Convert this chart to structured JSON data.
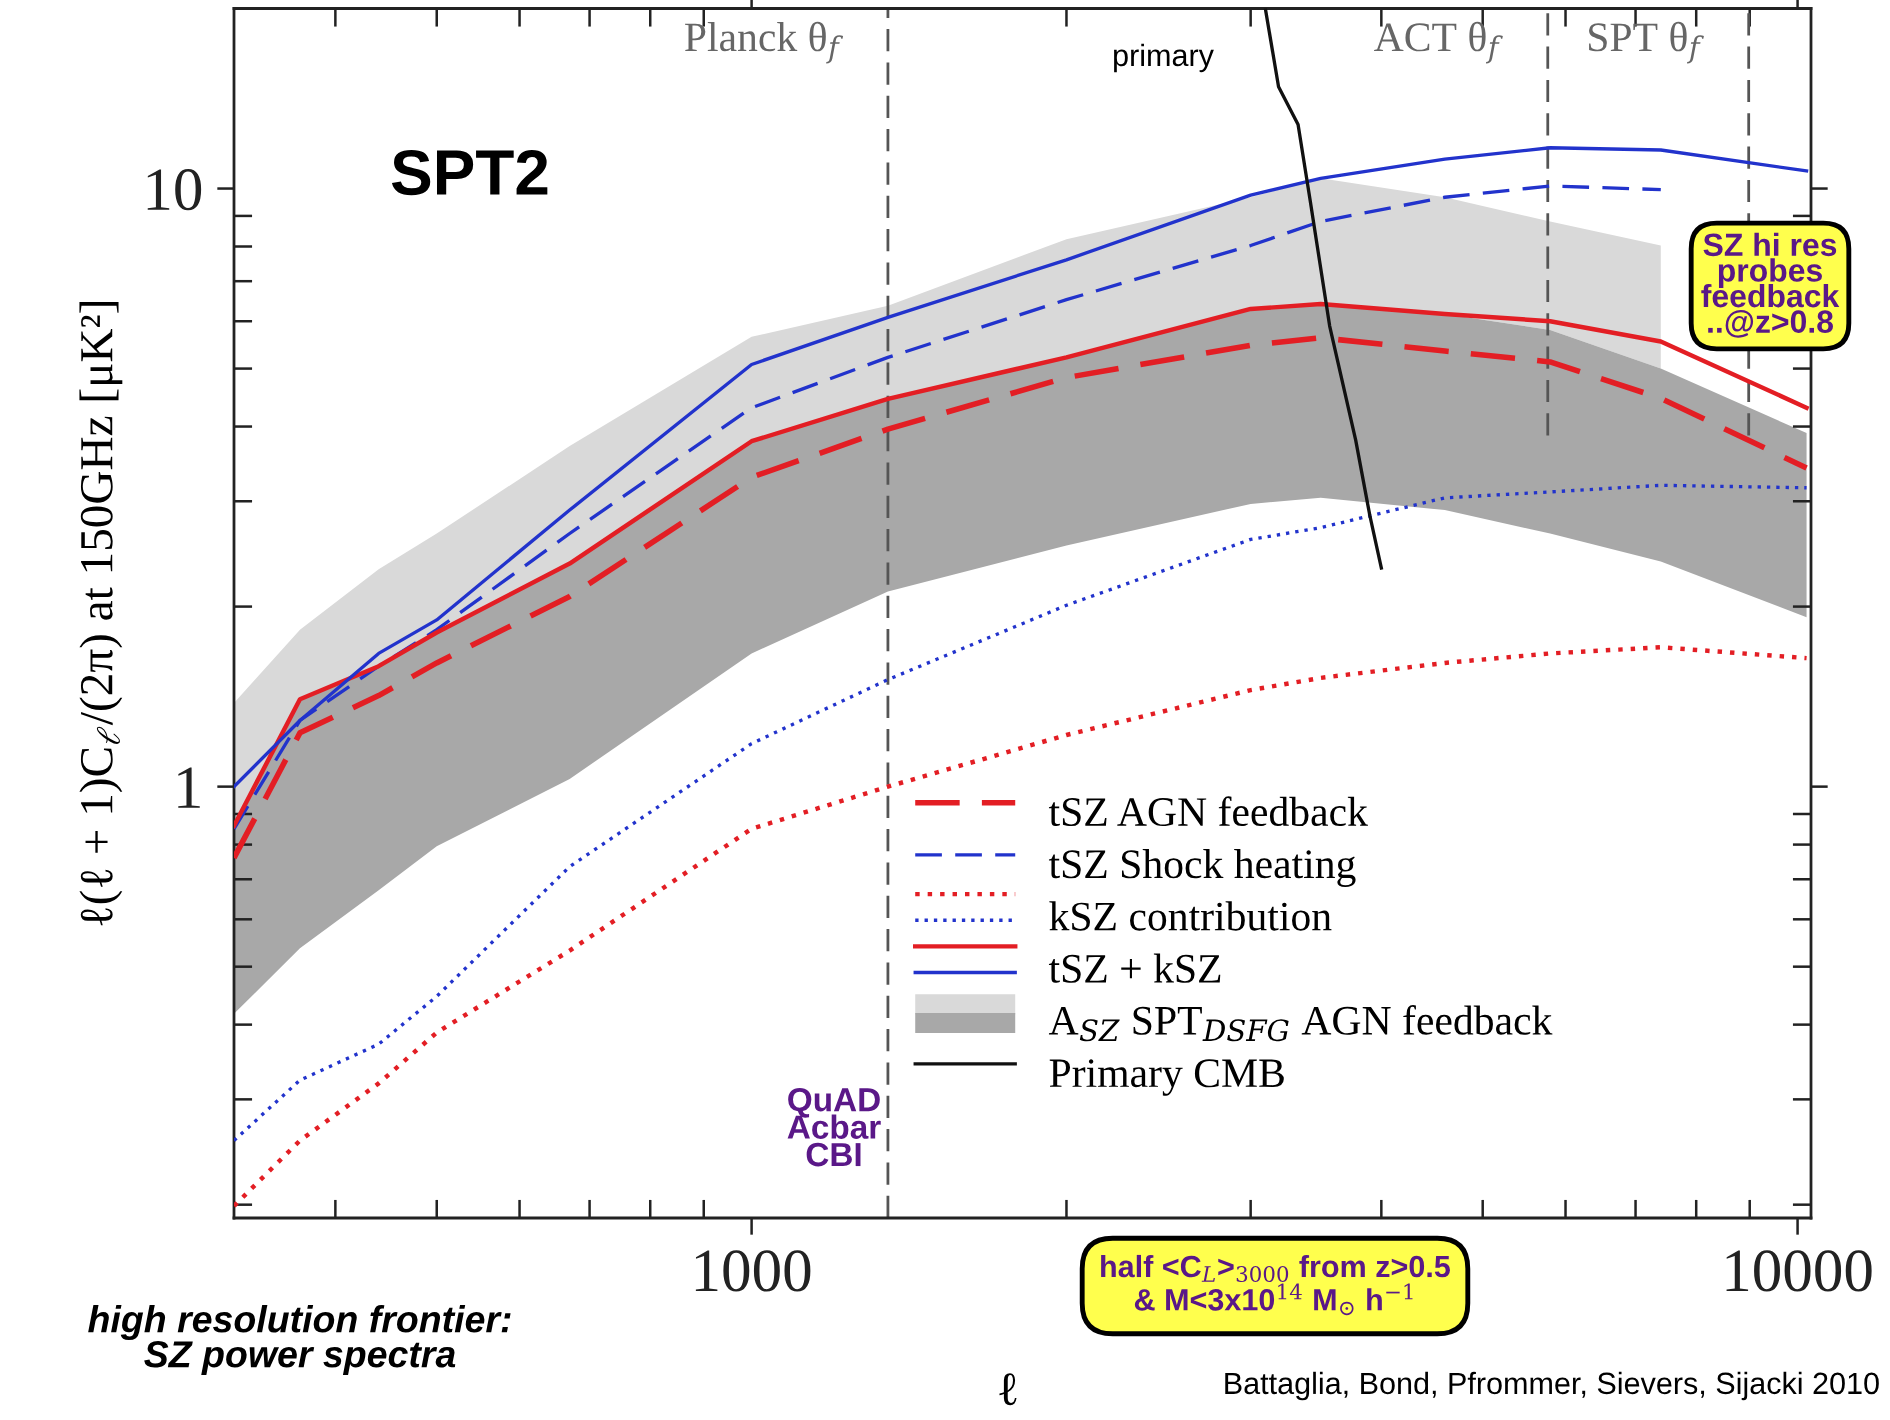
{
  "chart_data": {
    "type": "line",
    "xlabel": "ℓ",
    "ylabel": "ℓ(ℓ + 1)C$_{ℓ}$/(2π) at 150GHz [μK²]",
    "log": "xy",
    "xlim": [
      320,
      10300
    ],
    "ylim": [
      0.19,
      20
    ],
    "xticks": [
      1000,
      10000
    ],
    "yticks": [
      1,
      10
    ],
    "grid": false,
    "legend": "bottom right",
    "marker": "none",
    "x": [
      320,
      370,
      440,
      500,
      670,
      1000,
      1350,
      2000,
      3000,
      3500,
      4600,
      5800,
      7400,
      10200
    ],
    "series": [
      {
        "name": "tSZ AGN feedback",
        "line_style": "dashed",
        "color": "#e31e24",
        "values": [
          0.76,
          1.23,
          1.42,
          1.61,
          2.08,
          3.29,
          3.96,
          4.83,
          5.47,
          5.63,
          5.35,
          5.13,
          4.46,
          3.41
        ]
      },
      {
        "name": "tSZ Shock heating",
        "line_style": "dashed",
        "color": "#2233cc",
        "values": [
          0.85,
          1.29,
          1.59,
          1.83,
          2.65,
          4.3,
          5.22,
          6.52,
          8.03,
          8.81,
          9.67,
          10.1,
          9.96,
          null
        ]
      },
      {
        "name": "kSZ contribution",
        "line_style": "dotted",
        "color": "#e31e24",
        "values": [
          0.199,
          0.256,
          0.319,
          0.388,
          0.532,
          0.85,
          1.0,
          1.22,
          1.45,
          1.52,
          1.61,
          1.67,
          1.71,
          1.64
        ]
      },
      {
        "line_style": "dotted",
        "color": "#2233cc",
        "values": [
          0.256,
          0.323,
          0.371,
          0.446,
          0.735,
          1.18,
          1.51,
          2.01,
          2.59,
          2.71,
          3.04,
          3.11,
          3.19,
          3.16
        ]
      },
      {
        "name": "tSZ + kSZ",
        "line_style": "solid",
        "color": "#e31e24",
        "values": [
          0.86,
          1.4,
          1.59,
          1.81,
          2.36,
          3.78,
          4.45,
          5.22,
          6.29,
          6.41,
          6.17,
          6.0,
          5.55,
          4.3
        ]
      },
      {
        "line_style": "solid",
        "color": "#2233cc",
        "values": [
          1.0,
          1.29,
          1.67,
          1.9,
          2.9,
          5.08,
          6.09,
          7.6,
          9.75,
          10.4,
          11.2,
          11.7,
          11.6,
          10.7
        ]
      },
      {
        "name": "A$_{SZ}$ SPT$_{DSFG}$ AGN feedback",
        "color": "#d9d9d9",
        "values": [
          null,
          null,
          null,
          null,
          null,
          null,
          null,
          null,
          null,
          null,
          null,
          null,
          null,
          null
        ],
        "lower": [
          0.86,
          1.4,
          1.59,
          1.81,
          2.36,
          3.78,
          4.45,
          5.22,
          6.29,
          6.41,
          6.17,
          5.8,
          5.0,
          null
        ],
        "upper": [
          1.38,
          1.83,
          2.31,
          2.65,
          3.71,
          5.65,
          6.37,
          8.23,
          9.67,
          10.4,
          9.67,
          8.81,
          8.03,
          null
        ]
      },
      {
        "color": "#a8a8a8",
        "values": [
          null,
          null,
          null,
          null,
          null,
          null,
          null,
          null,
          null,
          null,
          null,
          null,
          null,
          null
        ],
        "lower": [
          0.417,
          0.537,
          0.671,
          0.795,
          1.03,
          1.67,
          2.12,
          2.53,
          2.97,
          3.04,
          2.9,
          2.65,
          2.38,
          1.92
        ],
        "upper": [
          0.86,
          1.4,
          1.59,
          1.81,
          2.36,
          3.78,
          4.45,
          5.22,
          6.29,
          6.41,
          6.17,
          5.8,
          5.0,
          3.9
        ]
      },
      {
        "name": "Primary CMB",
        "line_style": "solid",
        "color": "#111111",
        "x": [
          3100,
          3190,
          3330,
          3420,
          3570,
          3780,
          3900,
          4000
        ],
        "values": [
          19.9,
          14.8,
          12.8,
          9.55,
          5.89,
          3.8,
          2.84,
          2.32
        ]
      }
    ],
    "ref_lines": [
      {
        "axis": "x",
        "value": 1350,
        "label": "Planck θ$_{f}$",
        "color": "#555555",
        "line_style": "dashed"
      },
      {
        "axis": "x",
        "value": 5770,
        "label": "ACT θ$_{f}$",
        "color": "#555555",
        "line_style": "dashed"
      },
      {
        "axis": "x",
        "value": 8980,
        "label": "SPT θ$_{f}$",
        "color": "#555555",
        "line_style": "dashed"
      }
    ],
    "annotations": [
      "SPT2",
      "primary",
      "SZ hi res\nprobes\nfeedback\n..@z>0.8",
      "QuAD\nAcbar\nCBI",
      "half <C$_{L}$>$_{3000}$ from z>0.5\n& M<3x10$^{14}$ M$_{⊙}$ h$^{−1}$",
      "high resolution frontier:\nSZ power spectra",
      "Battaglia, Bond, Pfrommer, Sievers, Sijacki 2010"
    ]
  }
}
